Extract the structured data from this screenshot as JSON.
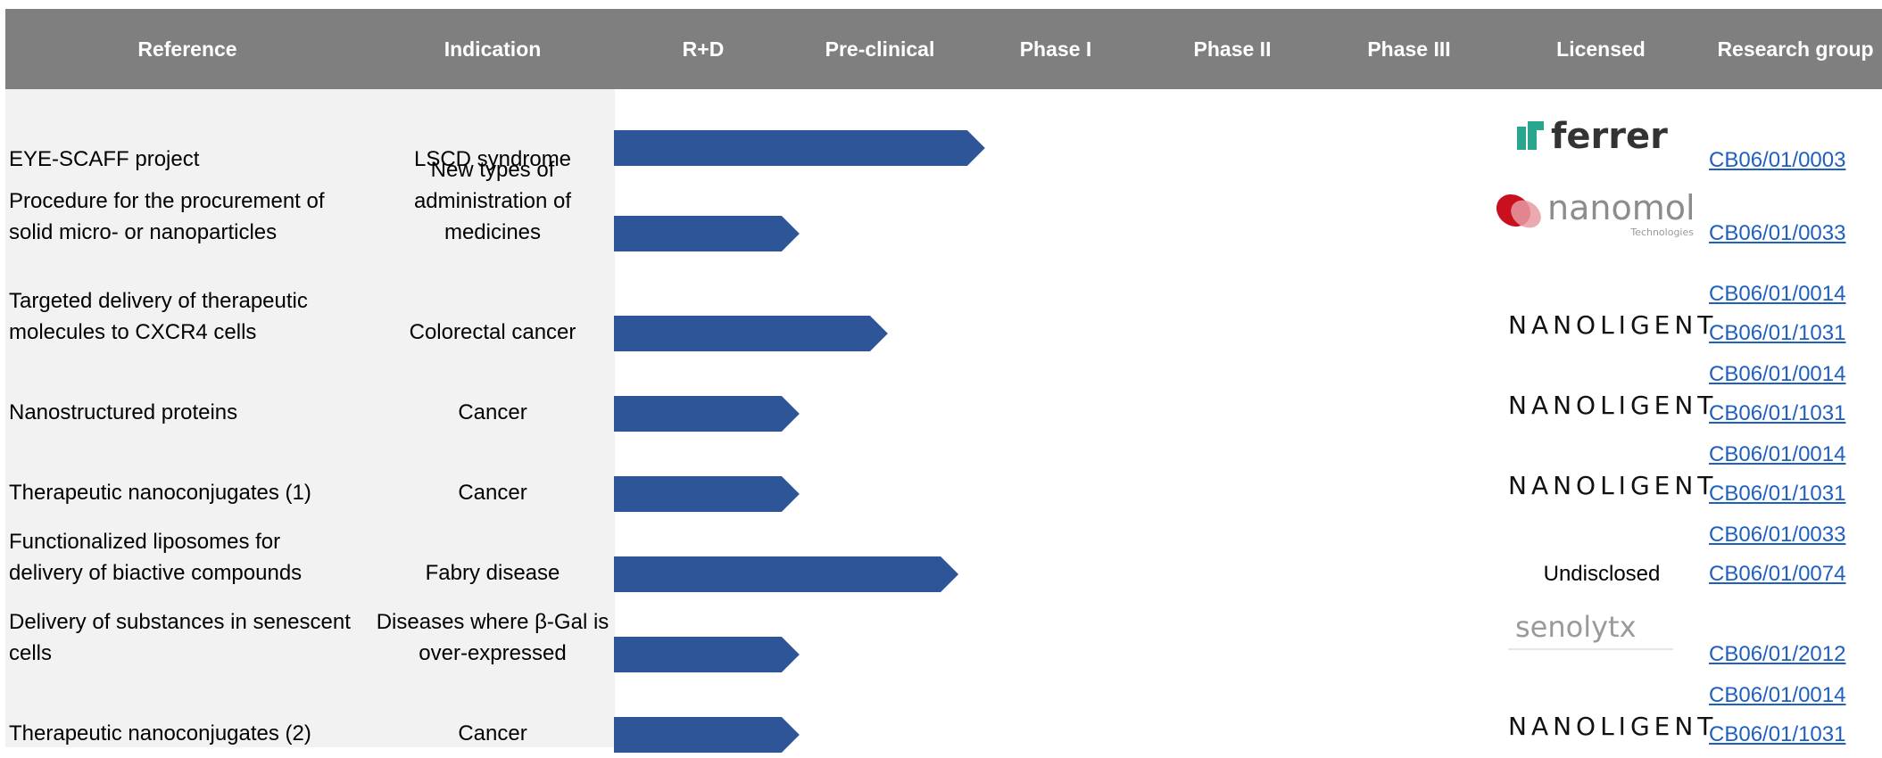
{
  "chart_data": {
    "type": "table",
    "columns": [
      "Reference",
      "Indication",
      "R+D",
      "Pre-clinical",
      "Phase I",
      "Phase II",
      "Phase III",
      "Licensed",
      "Research group"
    ],
    "phase_axis": [
      "R+D",
      "Pre-clinical",
      "Phase I",
      "Phase II",
      "Phase III"
    ],
    "rows": [
      {
        "reference": "EYE-SCAFF project",
        "indication": "LSCD syndrome",
        "progress": 2.1,
        "licensed": "ferrer",
        "licensed_kind": "ferrer-logo",
        "groups": [
          "CB06/01/0003"
        ]
      },
      {
        "reference": "Procedure for the procurement of solid micro- or nanoparticles",
        "indication": "New types of administration of medicines",
        "progress": 1.05,
        "licensed": "nanomol",
        "licensed_sub": "Technologies",
        "licensed_kind": "nanomol-logo",
        "groups": [
          "CB06/01/0033"
        ]
      },
      {
        "reference": "Targeted delivery of therapeutic molecules to CXCR4 cells",
        "indication": "Colorectal cancer",
        "progress": 1.55,
        "licensed": "NANOLIGENT",
        "licensed_kind": "nanoligent-logo",
        "groups": [
          "CB06/01/0014",
          "CB06/01/1031"
        ]
      },
      {
        "reference": "Nanostructured proteins",
        "indication": "Cancer",
        "progress": 1.05,
        "licensed": "NANOLIGENT",
        "licensed_kind": "nanoligent-logo",
        "groups": [
          "CB06/01/0014",
          "CB06/01/1031"
        ]
      },
      {
        "reference": "Therapeutic nanoconjugates (1)",
        "indication": "Cancer",
        "progress": 1.05,
        "licensed": "NANOLIGENT",
        "licensed_kind": "nanoligent-logo",
        "groups": [
          "CB06/01/0014",
          "CB06/01/1031"
        ]
      },
      {
        "reference": "Functionalized liposomes for delivery of biactive compounds",
        "indication": "Fabry disease",
        "progress": 1.95,
        "licensed": "Undisclosed",
        "licensed_kind": "text",
        "groups": [
          "CB06/01/0033",
          "CB06/01/0074"
        ]
      },
      {
        "reference": "Delivery of substances in senescent cells",
        "indication": "Diseases where β-Gal is over-expressed",
        "progress": 1.05,
        "licensed": "senolytx",
        "licensed_kind": "senolytx-logo",
        "groups": [
          "CB06/01/2012"
        ]
      },
      {
        "reference": "Therapeutic nanoconjugates (2)",
        "indication": "Cancer",
        "progress": 1.05,
        "licensed": "NANOLIGENT",
        "licensed_kind": "nanoligent-logo",
        "groups": [
          "CB06/01/0014",
          "CB06/01/1031"
        ]
      }
    ],
    "bar_color": "#2e5597",
    "header_color": "#7f7f7f",
    "left_panel_color": "#f2f2f2",
    "link_color": "#1f5fbf"
  }
}
